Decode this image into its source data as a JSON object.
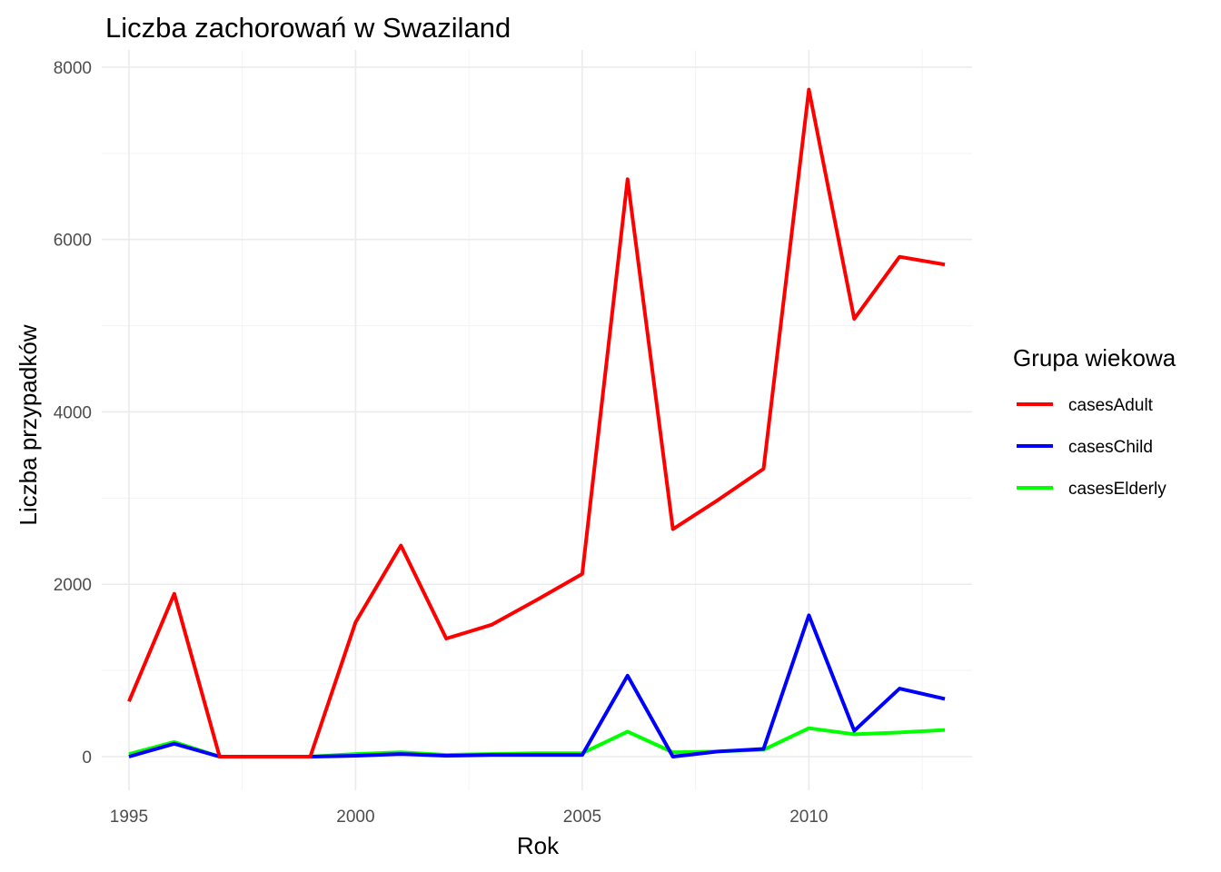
{
  "chart_data": {
    "type": "line",
    "title": "Liczba zachorowań w Swaziland",
    "xlabel": "Rok",
    "ylabel": "Liczba przypadków",
    "xlim": [
      1994.4,
      2013.6
    ],
    "ylim": [
      -390,
      8200
    ],
    "x_ticks": [
      1995,
      2000,
      2005,
      2010
    ],
    "x_tick_labels": [
      "1995",
      "2000",
      "2005",
      "2010"
    ],
    "y_ticks": [
      0,
      2000,
      4000,
      6000,
      8000
    ],
    "y_tick_labels": [
      "0",
      "2000",
      "4000",
      "6000",
      "8000"
    ],
    "grid": true,
    "legend": {
      "title": "Grupa wiekowa",
      "position": "right"
    },
    "x": [
      1995,
      1996,
      1997,
      1998,
      1999,
      2000,
      2001,
      2002,
      2003,
      2004,
      2005,
      2006,
      2007,
      2008,
      2009,
      2010,
      2011,
      2012,
      2013
    ],
    "series": [
      {
        "name": "casesAdult",
        "color": "#ff0000",
        "values": [
          640,
          1890,
          0,
          0,
          0,
          1560,
          2450,
          1370,
          1530,
          1820,
          2120,
          6700,
          2640,
          2980,
          3340,
          7740,
          5080,
          5800,
          5710
        ]
      },
      {
        "name": "casesChild",
        "color": "#0000ff",
        "values": [
          0,
          150,
          0,
          0,
          0,
          10,
          30,
          10,
          20,
          20,
          20,
          940,
          0,
          60,
          90,
          1640,
          300,
          790,
          670
        ]
      },
      {
        "name": "casesElderly",
        "color": "#00ff00",
        "values": [
          30,
          170,
          0,
          0,
          0,
          30,
          50,
          20,
          30,
          40,
          40,
          290,
          50,
          60,
          80,
          330,
          260,
          280,
          310
        ]
      }
    ]
  }
}
